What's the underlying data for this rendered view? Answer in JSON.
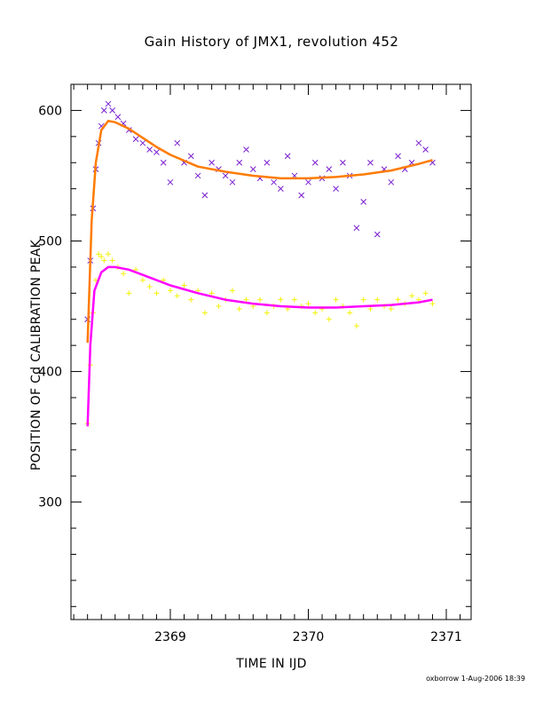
{
  "chart_data": {
    "type": "scatter",
    "title": "Gain History of JMX1, revolution 452",
    "xlabel": "TIME IN IJD",
    "ylabel": "POSITION OF Cd CALIBRATION PEAK",
    "xlim": [
      2368.28,
      2371.18
    ],
    "ylim": [
      210,
      620
    ],
    "x_ticks": [
      2369,
      2370,
      2371
    ],
    "y_ticks": [
      300,
      400,
      500,
      600
    ],
    "grid": false,
    "series": [
      {
        "marker": "x",
        "color": "#7a1fd0",
        "fit_color": "#ff7b00",
        "x": [
          2368.4,
          2368.42,
          2368.44,
          2368.46,
          2368.48,
          2368.5,
          2368.52,
          2368.55,
          2368.58,
          2368.62,
          2368.66,
          2368.7,
          2368.75,
          2368.8,
          2368.85,
          2368.9,
          2368.95,
          2369.0,
          2369.05,
          2369.1,
          2369.15,
          2369.2,
          2369.25,
          2369.3,
          2369.35,
          2369.4,
          2369.45,
          2369.5,
          2369.55,
          2369.6,
          2369.65,
          2369.7,
          2369.75,
          2369.8,
          2369.85,
          2369.9,
          2369.95,
          2370.0,
          2370.05,
          2370.1,
          2370.15,
          2370.2,
          2370.25,
          2370.3,
          2370.35,
          2370.4,
          2370.45,
          2370.5,
          2370.55,
          2370.6,
          2370.65,
          2370.7,
          2370.75,
          2370.8,
          2370.85,
          2370.9
        ],
        "y": [
          440,
          485,
          525,
          555,
          575,
          588,
          600,
          605,
          600,
          595,
          590,
          585,
          578,
          575,
          570,
          568,
          560,
          545,
          575,
          560,
          565,
          550,
          535,
          560,
          555,
          550,
          545,
          560,
          570,
          555,
          548,
          560,
          545,
          540,
          565,
          550,
          535,
          545,
          560,
          548,
          555,
          540,
          560,
          550,
          510,
          530,
          560,
          505,
          555,
          545,
          565,
          555,
          560,
          575,
          570,
          560
        ],
        "fit": {
          "x": [
            2368.4,
            2368.43,
            2368.46,
            2368.5,
            2368.55,
            2368.6,
            2368.7,
            2368.8,
            2368.9,
            2369.0,
            2369.2,
            2369.4,
            2369.6,
            2369.8,
            2370.0,
            2370.2,
            2370.4,
            2370.6,
            2370.8,
            2370.9
          ],
          "y": [
            422,
            515,
            560,
            585,
            592,
            591,
            586,
            579,
            572,
            566,
            557,
            553,
            550,
            548,
            548,
            549,
            551,
            554,
            559,
            562
          ]
        }
      },
      {
        "marker": "+",
        "color": "#f2f20a",
        "fit_color": "#ff00ff",
        "x": [
          2368.4,
          2368.42,
          2368.44,
          2368.46,
          2368.48,
          2368.5,
          2368.52,
          2368.55,
          2368.58,
          2368.62,
          2368.66,
          2368.7,
          2368.75,
          2368.8,
          2368.85,
          2368.9,
          2368.95,
          2369.0,
          2369.05,
          2369.1,
          2369.15,
          2369.2,
          2369.25,
          2369.3,
          2369.35,
          2369.4,
          2369.45,
          2369.5,
          2369.55,
          2369.6,
          2369.65,
          2369.7,
          2369.75,
          2369.8,
          2369.85,
          2369.9,
          2369.95,
          2370.0,
          2370.05,
          2370.1,
          2370.15,
          2370.2,
          2370.25,
          2370.3,
          2370.35,
          2370.4,
          2370.45,
          2370.5,
          2370.55,
          2370.6,
          2370.65,
          2370.7,
          2370.75,
          2370.8,
          2370.85,
          2370.9
        ],
        "y": [
          360,
          405,
          445,
          470,
          490,
          488,
          485,
          490,
          485,
          480,
          475,
          460,
          478,
          470,
          465,
          460,
          470,
          462,
          458,
          466,
          455,
          462,
          445,
          460,
          450,
          455,
          462,
          448,
          455,
          450,
          455,
          445,
          450,
          455,
          448,
          455,
          450,
          452,
          445,
          448,
          440,
          455,
          450,
          445,
          435,
          455,
          448,
          455,
          450,
          448,
          455,
          452,
          458,
          455,
          460,
          452
        ],
        "fit": {
          "x": [
            2368.4,
            2368.42,
            2368.45,
            2368.5,
            2368.55,
            2368.6,
            2368.7,
            2368.8,
            2368.9,
            2369.0,
            2369.2,
            2369.4,
            2369.6,
            2369.8,
            2370.0,
            2370.2,
            2370.4,
            2370.6,
            2370.8,
            2370.9
          ],
          "y": [
            358,
            420,
            462,
            476,
            480,
            480,
            478,
            474,
            470,
            466,
            460,
            455,
            452,
            450,
            449,
            449,
            450,
            451,
            453,
            455
          ]
        }
      }
    ]
  },
  "footer": "oxborrow  1-Aug-2006 18:39"
}
